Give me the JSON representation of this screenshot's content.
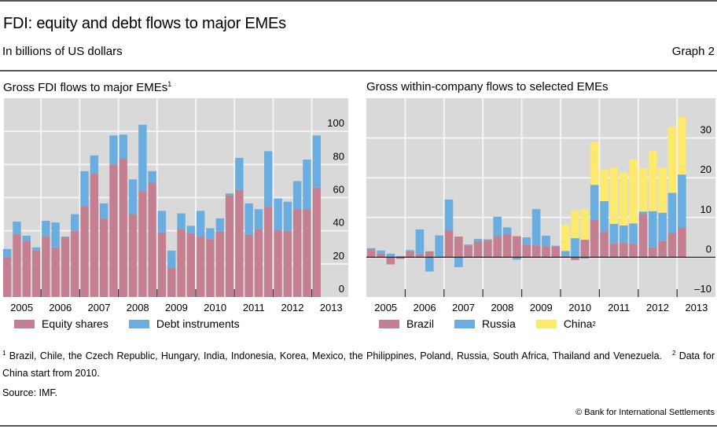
{
  "header": {
    "title": "FDI: equity and debt flows to major EMEs",
    "subtitle": "In billions of US dollars",
    "graph_number": "Graph 2"
  },
  "colors": {
    "equity": "#c48090",
    "debt": "#6aade0",
    "brazil": "#c48090",
    "russia": "#6aade0",
    "china": "#fde96e",
    "panel_bg": "#d9d9d9",
    "gridline": "#f4f4f4"
  },
  "footnotes": {
    "note1_marker": "1",
    "note1_text": "Brazil, Chile, the Czech Republic, Hungary, India, Indonesia, Korea, Mexico, the Philippines, Poland, Russia, South Africa, Thailand and Venezuela.",
    "note2_marker": "2",
    "note2_text": "Data for China start from 2010."
  },
  "source": "Source: IMF.",
  "copyright": "© Bank for International Settlements",
  "chart_data": [
    {
      "type": "bar",
      "stacked": true,
      "title": "Gross FDI flows to major EMEs",
      "title_footnote": "1",
      "frequency": "quarterly",
      "x_tick_labels": [
        "2005",
        "2006",
        "2007",
        "2008",
        "2009",
        "2010",
        "2011",
        "2012",
        "2013"
      ],
      "categories": [
        "2005Q1",
        "2005Q2",
        "2005Q3",
        "2005Q4",
        "2006Q1",
        "2006Q2",
        "2006Q3",
        "2006Q4",
        "2007Q1",
        "2007Q2",
        "2007Q3",
        "2007Q4",
        "2008Q1",
        "2008Q2",
        "2008Q3",
        "2008Q4",
        "2009Q1",
        "2009Q2",
        "2009Q3",
        "2009Q4",
        "2010Q1",
        "2010Q2",
        "2010Q3",
        "2010Q4",
        "2011Q1",
        "2011Q2",
        "2011Q3",
        "2011Q4",
        "2012Q1",
        "2012Q2",
        "2012Q3",
        "2012Q4",
        "2013Q1"
      ],
      "series": [
        {
          "name": "Equity shares",
          "color_key": "equity",
          "values": [
            24,
            38,
            34,
            28,
            36.5,
            30,
            36,
            40,
            55,
            74.5,
            47.5,
            80,
            83.5,
            50,
            64,
            69,
            39,
            17.5,
            41,
            38.5,
            36.5,
            35,
            39.5,
            61.5,
            64.5,
            37.5,
            41,
            54.5,
            40.5,
            40,
            53,
            53,
            66
          ]
        },
        {
          "name": "Debt instruments",
          "color_key": "debt",
          "values": [
            5,
            7.5,
            3,
            2,
            9.5,
            15,
            0.5,
            10,
            21,
            11,
            9,
            17.5,
            14.5,
            21,
            40,
            7,
            13,
            10.5,
            9.5,
            4.5,
            15.5,
            6.5,
            8,
            1,
            19.5,
            19,
            12,
            33.5,
            19,
            17.5,
            17,
            30,
            31.5
          ]
        }
      ],
      "xlabel": "",
      "ylabel": "",
      "y_axis_side": "right",
      "yticks": [
        0,
        20,
        40,
        60,
        80,
        100
      ],
      "ylim": [
        0,
        120
      ],
      "grid": true,
      "legend_position": "bottom-left"
    },
    {
      "type": "bar",
      "stacked": true,
      "title": "Gross within-company flows to selected EMEs",
      "frequency": "quarterly",
      "x_tick_labels": [
        "2005",
        "2006",
        "2007",
        "2008",
        "2009",
        "2010",
        "2011",
        "2012",
        "2013"
      ],
      "categories": [
        "2005Q1",
        "2005Q2",
        "2005Q3",
        "2005Q4",
        "2006Q1",
        "2006Q2",
        "2006Q3",
        "2006Q4",
        "2007Q1",
        "2007Q2",
        "2007Q3",
        "2007Q4",
        "2008Q1",
        "2008Q2",
        "2008Q3",
        "2008Q4",
        "2009Q1",
        "2009Q2",
        "2009Q3",
        "2009Q4",
        "2010Q1",
        "2010Q2",
        "2010Q3",
        "2010Q4",
        "2011Q1",
        "2011Q2",
        "2011Q3",
        "2011Q4",
        "2012Q1",
        "2012Q2",
        "2012Q3",
        "2012Q4",
        "2013Q1"
      ],
      "series": [
        {
          "name": "Brazil",
          "color_key": "brazil",
          "values": [
            2.0,
            0.9,
            -1.8,
            -0.4,
            1.5,
            0.8,
            1.5,
            0.2,
            6.8,
            5.2,
            3.0,
            4.0,
            4.3,
            5.3,
            5.9,
            5.3,
            3.2,
            3.0,
            2.8,
            2.7,
            0.3,
            -0.7,
            4.4,
            9.4,
            6.4,
            3.5,
            3.7,
            3.4,
            10.9,
            2.5,
            4.1,
            6.1,
            7.4
          ]
        },
        {
          "name": "Russia",
          "color_key": "russia",
          "values": [
            0.3,
            0.8,
            0.9,
            0.3,
            0.3,
            6.2,
            -3.6,
            5.3,
            7.7,
            -2.5,
            0.2,
            0.6,
            0.2,
            4.9,
            1.6,
            -0.6,
            1.8,
            9.1,
            2.6,
            0.2,
            1.3,
            4.8,
            -0.3,
            8.8,
            7.7,
            4.9,
            4.3,
            5.1,
            0.6,
            9.1,
            7.1,
            10.1,
            13.4
          ]
        },
        {
          "name": "China",
          "name_footnote": "2",
          "color_key": "china",
          "values": [
            null,
            null,
            null,
            null,
            null,
            null,
            null,
            null,
            null,
            null,
            null,
            null,
            null,
            null,
            null,
            null,
            null,
            null,
            null,
            null,
            6.6,
            7.0,
            7.7,
            10.8,
            8.0,
            14.2,
            13.3,
            16.1,
            10.9,
            15.2,
            11.3,
            16.6,
            14.5
          ]
        }
      ],
      "xlabel": "",
      "ylabel": "",
      "y_axis_side": "right",
      "yticks": [
        -10,
        0,
        10,
        20,
        30
      ],
      "ytick_labels": [
        "–10",
        "0",
        "10",
        "20",
        "30"
      ],
      "ylim": [
        -10,
        40
      ],
      "grid": true,
      "zero_line": true,
      "legend_position": "bottom-left"
    }
  ]
}
